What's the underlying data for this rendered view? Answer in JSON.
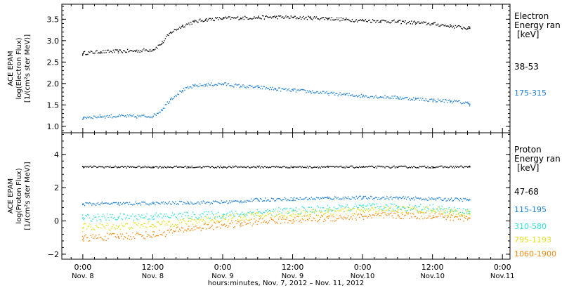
{
  "chart_data": [
    {
      "type": "scatter",
      "ylabel_lines": [
        "ACE EPAM",
        "log(Electron Flux)",
        "[1/(cm²s ster MeV)]"
      ],
      "ylim": [
        0.85,
        3.85
      ],
      "yticks": [
        1.0,
        1.5,
        2.0,
        2.5,
        3.0,
        3.5
      ],
      "ytick_labels": [
        "1.0",
        "1.5",
        "2.0",
        "2.5",
        "3.0",
        "3.5"
      ],
      "legend_title": [
        "Electron",
        "Energy ran",
        "[keV]"
      ],
      "series": [
        {
          "name": "38-53",
          "color": "#000000",
          "x": [
            -0.11,
            0,
            3,
            6,
            9,
            12,
            13.5,
            15,
            17,
            19,
            21,
            24,
            27,
            30,
            33,
            36,
            39,
            42,
            45,
            48,
            51,
            54,
            57,
            60,
            63,
            66,
            66.3
          ],
          "y": [
            2.7,
            2.72,
            2.75,
            2.76,
            2.77,
            2.8,
            2.95,
            3.2,
            3.35,
            3.45,
            3.5,
            3.53,
            3.54,
            3.55,
            3.56,
            3.55,
            3.54,
            3.53,
            3.5,
            3.48,
            3.47,
            3.45,
            3.43,
            3.4,
            3.35,
            3.3,
            3.3
          ]
        },
        {
          "name": "175-315",
          "color": "#1e7fd0",
          "x": [
            -0.11,
            0,
            3,
            6,
            9,
            12,
            13.5,
            15,
            17,
            19,
            21,
            24,
            27,
            30,
            33,
            36,
            39,
            42,
            45,
            48,
            51,
            54,
            57,
            60,
            63,
            66,
            66.3
          ],
          "y": [
            1.18,
            1.22,
            1.24,
            1.25,
            1.24,
            1.25,
            1.4,
            1.65,
            1.85,
            1.95,
            1.98,
            2.0,
            1.95,
            1.92,
            1.88,
            1.85,
            1.82,
            1.78,
            1.75,
            1.72,
            1.7,
            1.68,
            1.65,
            1.62,
            1.6,
            1.55,
            1.53
          ]
        }
      ]
    },
    {
      "type": "scatter",
      "ylabel_lines": [
        "ACE EPAM",
        "log(Proton Flux)",
        "[1/(cm²s ster MeV)]"
      ],
      "ylim": [
        -2.3,
        5.3
      ],
      "yticks": [
        -2,
        0,
        2,
        4
      ],
      "ytick_labels": [
        "−2",
        "0",
        "2",
        "4"
      ],
      "legend_title": [
        "Proton",
        "Energy ran",
        "[keV]"
      ],
      "series": [
        {
          "name": "47-68",
          "color": "#000000",
          "x": [
            -0.11,
            0,
            6,
            12,
            18,
            24,
            30,
            36,
            42,
            48,
            54,
            60,
            66,
            66.3
          ],
          "y": [
            3.3,
            3.28,
            3.27,
            3.27,
            3.27,
            3.27,
            3.27,
            3.27,
            3.27,
            3.27,
            3.27,
            3.27,
            3.28,
            3.28
          ]
        },
        {
          "name": "115-195",
          "color": "#1e7fd0",
          "x": [
            -0.11,
            0,
            6,
            12,
            18,
            24,
            27,
            30,
            36,
            42,
            48,
            54,
            60,
            63,
            66,
            66.3
          ],
          "y": [
            1.05,
            1.05,
            1.06,
            1.08,
            1.12,
            1.15,
            1.2,
            1.3,
            1.35,
            1.4,
            1.42,
            1.4,
            1.35,
            1.32,
            1.3,
            1.3
          ]
        },
        {
          "name": "310-580",
          "color": "#30e0d0",
          "x": [
            -0.11,
            0,
            6,
            12,
            18,
            24,
            27,
            30,
            36,
            42,
            48,
            54,
            60,
            63,
            66,
            66.3
          ],
          "y": [
            0.2,
            0.22,
            0.25,
            0.3,
            0.35,
            0.4,
            0.45,
            0.55,
            0.65,
            0.75,
            0.85,
            0.85,
            0.8,
            0.65,
            0.6,
            0.6
          ]
        },
        {
          "name": "795-1193",
          "color": "#e0e020",
          "x": [
            -0.11,
            0,
            6,
            12,
            18,
            24,
            27,
            30,
            36,
            42,
            48,
            54,
            60,
            63,
            66,
            66.3
          ],
          "y": [
            -0.4,
            -0.35,
            -0.3,
            -0.2,
            0.0,
            0.2,
            0.25,
            0.35,
            0.45,
            0.55,
            0.65,
            0.7,
            0.7,
            0.55,
            0.45,
            0.45
          ]
        },
        {
          "name": "1060-1900",
          "color": "#f08a10",
          "x": [
            -0.11,
            0,
            6,
            12,
            18,
            24,
            27,
            30,
            36,
            42,
            48,
            54,
            60,
            63,
            66,
            66.3
          ],
          "y": [
            -1.1,
            -1.0,
            -0.9,
            -0.8,
            -0.45,
            -0.2,
            -0.15,
            0.0,
            0.1,
            0.2,
            0.3,
            0.35,
            0.35,
            0.25,
            0.2,
            0.2
          ]
        }
      ]
    }
  ],
  "x_axis": {
    "xlim": [
      -3.6,
      73.3
    ],
    "ticks": [
      0,
      12,
      24,
      36,
      48,
      60,
      72
    ],
    "labels": [
      "0:00",
      "12:00",
      "0:00",
      "12:00",
      "0:00",
      "12:00",
      "0:00"
    ],
    "sublabels": [
      "Nov. 8",
      "Nov. 8",
      "Nov. 9",
      "Nov. 9",
      "Nov.10",
      "Nov.10",
      "Nov.11"
    ],
    "title": "hours:minutes, Nov.  7, 2012 – Nov. 11, 2012"
  }
}
